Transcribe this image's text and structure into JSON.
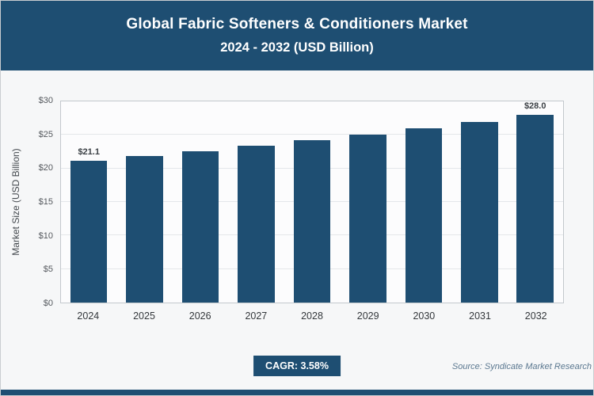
{
  "header": {
    "title": "Global Fabric Softeners & Conditioners Market",
    "subtitle": "2024 - 2032 (USD Billion)"
  },
  "chart_data": {
    "type": "bar",
    "title": "Global Fabric Softeners & Conditioners Market 2024 - 2032 (USD Billion)",
    "categories": [
      "2024",
      "2025",
      "2026",
      "2027",
      "2028",
      "2029",
      "2030",
      "2031",
      "2032"
    ],
    "values": [
      21.1,
      21.8,
      22.6,
      23.4,
      24.2,
      25.1,
      26.0,
      26.9,
      28.0
    ],
    "point_labels": [
      "$21.1",
      "",
      "",
      "",
      "",
      "",
      "",
      "",
      "$28.0"
    ],
    "xlabel": "",
    "ylabel": "Market Size (USD Billion)",
    "ylim": [
      0,
      30
    ],
    "yticks": [
      0,
      5,
      10,
      15,
      20,
      25,
      30
    ],
    "ytick_labels": [
      "$0",
      "$5",
      "$10",
      "$15",
      "$20",
      "$25",
      "$30"
    ],
    "grid": true,
    "legend": false,
    "bar_color": "#1e4e72"
  },
  "footer": {
    "cagr_label": "CAGR: 3.58%",
    "source": "Source: Syndicate Market Research"
  },
  "colors": {
    "accent": "#1e4e72",
    "background": "#f6f7f8"
  }
}
